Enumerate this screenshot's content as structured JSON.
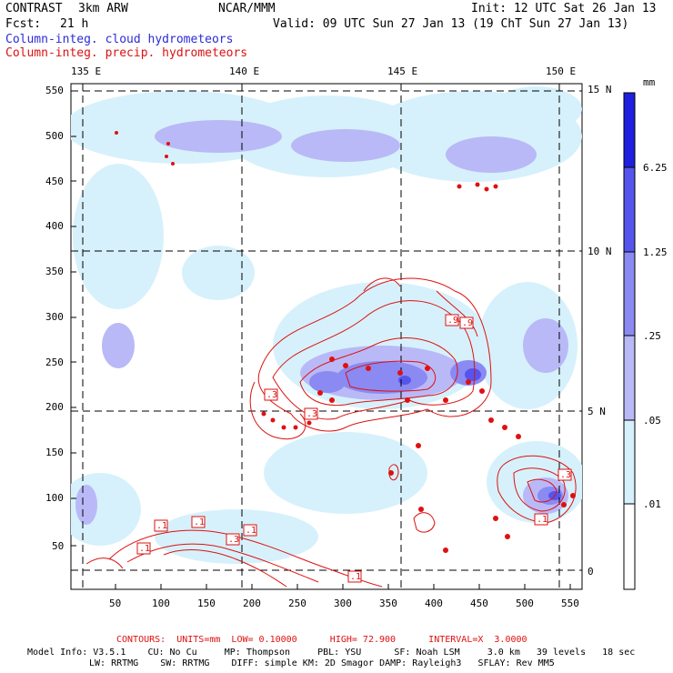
{
  "header": {
    "product": "CONTRAST",
    "model": "3km ARW",
    "org": "NCAR/MMM",
    "init": "Init: 12 UTC Sat 26 Jan 13",
    "fcst_label": "Fcst:",
    "fcst_value": "21 h",
    "valid": "Valid: 09 UTC Sun 27 Jan 13 (19 ChT Sun 27 Jan 13)"
  },
  "legend": {
    "cloud": "Column-integ. cloud hydrometeors",
    "precip": "Column-integ. precip. hydrometeors",
    "unit": "mm"
  },
  "axes": {
    "top_lon": [
      "135 E",
      "140 E",
      "145 E",
      "150 E"
    ],
    "right_lat": [
      "15 N",
      "10 N",
      "5 N",
      "0"
    ],
    "left_ticks": [
      "550",
      "500",
      "450",
      "400",
      "350",
      "300",
      "250",
      "200",
      "150",
      "100",
      "50"
    ],
    "bottom_ticks": [
      "50",
      "100",
      "150",
      "200",
      "250",
      "300",
      "350",
      "400",
      "450",
      "500",
      "550"
    ]
  },
  "colorbar": {
    "labels": [
      "6.25",
      "1.25",
      ".25",
      ".05",
      ".01"
    ],
    "colors": [
      "#1f1fe0",
      "#5555ee",
      "#8a8af2",
      "#b9b9f7",
      "#d6f1fb",
      "#ffffff"
    ]
  },
  "contour_labels": [
    ".9",
    ".3",
    ".3",
    ".9",
    ".3",
    ".1",
    ".1",
    ".1",
    ".1",
    ".3",
    ".1",
    ".1"
  ],
  "footer": {
    "contours": "CONTOURS:  UNITS=mm  LOW= 0.10000      HIGH= 72.900      INTERVAL=X  3.0000",
    "model_info_1": "Model Info: V3.5.1    CU: No Cu     MP: Thompson     PBL: YSU      SF: Noah LSM     3.0 km   39 levels   18 sec",
    "model_info_2": "LW: RRTMG    SW: RRTMG    DIFF: simple KM: 2D Smagor DAMP: Rayleigh3   SFLAY: Rev MM5"
  }
}
